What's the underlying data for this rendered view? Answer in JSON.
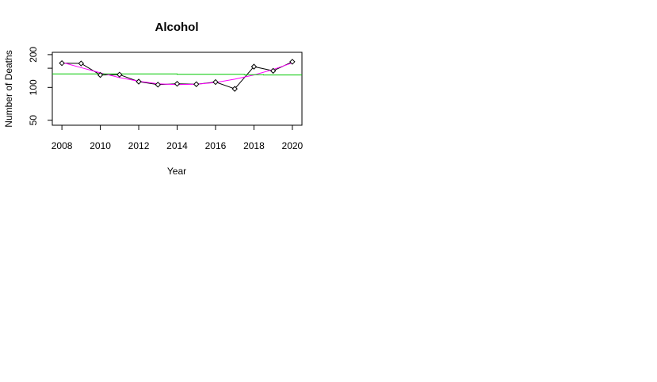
{
  "chart_data": {
    "type": "line",
    "title": "Alcohol",
    "xlabel": "Year",
    "ylabel": "Number of Deaths",
    "xlim": [
      2007.5,
      2020.5
    ],
    "ylim": [
      45,
      210
    ],
    "x_ticks": [
      2008,
      2010,
      2012,
      2014,
      2016,
      2018,
      2020
    ],
    "y_ticks": [
      50,
      100,
      200
    ],
    "y_tick_labels": [
      "50",
      "100",
      "200"
    ],
    "grid": false,
    "series": [
      {
        "style": "points-lines",
        "color": "#000000",
        "x": [
          2008,
          2009,
          2010,
          2011,
          2012,
          2013,
          2014,
          2015,
          2016,
          2017,
          2018,
          2019,
          2020
        ],
        "y": [
          167,
          166,
          130,
          131,
          113,
          106,
          108,
          107,
          112,
          97,
          155,
          142,
          172
        ]
      },
      {
        "style": "line",
        "color": "#ff00ff",
        "x": [
          2008,
          2009,
          2010,
          2011,
          2012,
          2013,
          2014,
          2015,
          2016,
          2017,
          2018,
          2019,
          2020
        ],
        "y": [
          170,
          152,
          136,
          123,
          114,
          108,
          106,
          107,
          111,
          119,
          130,
          146,
          168
        ]
      },
      {
        "style": "line",
        "color": "#00c800",
        "x": [
          2007.5,
          2014,
          2014,
          2017.5,
          2017.5,
          2018.5,
          2018.5,
          2020.5
        ],
        "y": [
          133,
          133,
          132,
          132,
          131,
          131,
          130,
          130
        ]
      }
    ]
  }
}
